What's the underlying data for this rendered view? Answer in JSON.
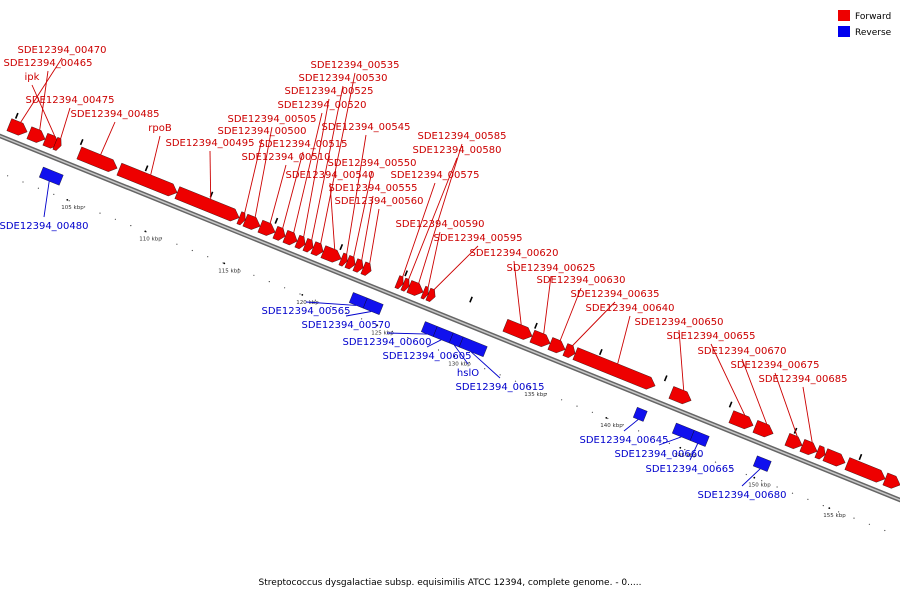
{
  "caption": "Streptococcus dysgalactiae subsp. equisimilis ATCC 12394, complete genome. - 0.....",
  "legend": [
    {
      "label": "Forward",
      "color": "#ee0000"
    },
    {
      "label": "Reverse",
      "color": "#0000ee"
    }
  ],
  "colors": {
    "forward": "#ee0000",
    "reverse": "#1111ee",
    "backbone": "#888888"
  },
  "ticks": [
    "105 kbp",
    "110 kbp",
    "115 kbp",
    "120 kbp",
    "125 kbp",
    "130 kbp",
    "135 kbp",
    "140 kbp",
    "145 kbp",
    "150 kbp",
    "155 kbp"
  ],
  "forward_genes": [
    {
      "name": "SDE12394_00470"
    },
    {
      "name": "SDE12394_00465"
    },
    {
      "name": "ipk"
    },
    {
      "name": "SDE12394_00475"
    },
    {
      "name": "SDE12394_00485"
    },
    {
      "name": "rpoB"
    },
    {
      "name": "SDE12394_00495"
    },
    {
      "name": "SDE12394_00500"
    },
    {
      "name": "SDE12394_00505"
    },
    {
      "name": "SDE12394_00510"
    },
    {
      "name": "SDE12394_00515"
    },
    {
      "name": "SDE12394_00520"
    },
    {
      "name": "SDE12394_00525"
    },
    {
      "name": "SDE12394_00530"
    },
    {
      "name": "SDE12394_00535"
    },
    {
      "name": "SDE12394_00540"
    },
    {
      "name": "SDE12394_00545"
    },
    {
      "name": "SDE12394_00550"
    },
    {
      "name": "SDE12394_00555"
    },
    {
      "name": "SDE12394_00560"
    },
    {
      "name": "SDE12394_00575"
    },
    {
      "name": "SDE12394_00580"
    },
    {
      "name": "SDE12394_00585"
    },
    {
      "name": "SDE12394_00590"
    },
    {
      "name": "SDE12394_00595"
    },
    {
      "name": "SDE12394_00620"
    },
    {
      "name": "SDE12394_00625"
    },
    {
      "name": "SDE12394_00630"
    },
    {
      "name": "SDE12394_00635"
    },
    {
      "name": "SDE12394_00640"
    },
    {
      "name": "SDE12394_00650"
    },
    {
      "name": "SDE12394_00655"
    },
    {
      "name": "SDE12394_00670"
    },
    {
      "name": "SDE12394_00675"
    },
    {
      "name": "SDE12394_00685"
    }
  ],
  "reverse_genes": [
    {
      "name": "SDE12394_00480"
    },
    {
      "name": "SDE12394_00565"
    },
    {
      "name": "SDE12394_00570"
    },
    {
      "name": "SDE12394_00600"
    },
    {
      "name": "SDE12394_00605"
    },
    {
      "name": "hslO"
    },
    {
      "name": "SDE12394_00615"
    },
    {
      "name": "SDE12394_00645"
    },
    {
      "name": "SDE12394_00660"
    },
    {
      "name": "SDE12394_00665"
    },
    {
      "name": "SDE12394_00680"
    }
  ]
}
